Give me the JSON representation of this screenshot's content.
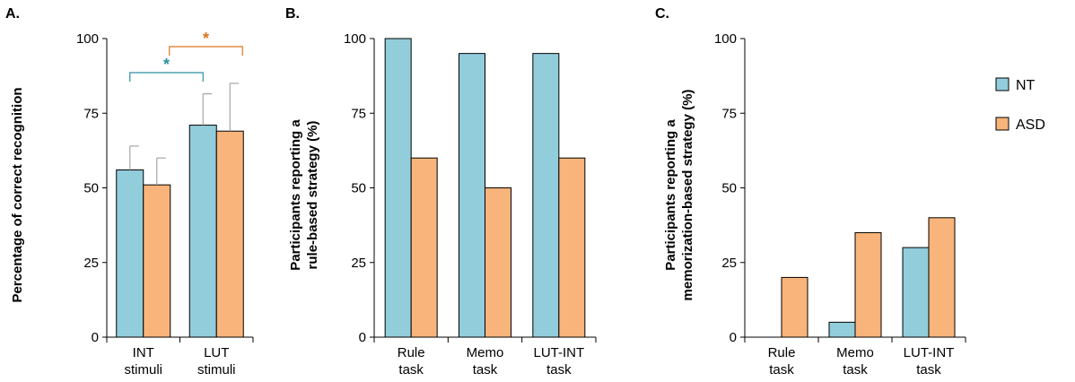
{
  "chart_data": [
    {
      "type": "bar",
      "panel": "A.",
      "title": "",
      "ylabel": "Percentage of correct recognition",
      "xlabel": "",
      "ylim": [
        0,
        100
      ],
      "yticks": [
        "0",
        "25",
        "50",
        "75",
        "100"
      ],
      "categories": [
        [
          "INT",
          "stimuli"
        ],
        [
          "LUT",
          "stimuli"
        ]
      ],
      "series": [
        {
          "name": "NT",
          "values": [
            56,
            71
          ],
          "error": [
            8,
            10.5
          ]
        },
        {
          "name": "ASD",
          "values": [
            51,
            69
          ],
          "error": [
            9,
            16
          ]
        }
      ],
      "annotations": [
        {
          "text": "*",
          "color": "#2b8fa0",
          "between": [
            "NT:INT stimuli",
            "NT:LUT stimuli"
          ]
        },
        {
          "text": "*",
          "color": "#d9771f",
          "between": [
            "ASD:INT stimuli",
            "ASD:LUT stimuli"
          ]
        }
      ]
    },
    {
      "type": "bar",
      "panel": "B.",
      "title": "",
      "ylabel": [
        "Participants reporting a",
        "rule-based strategy (%)"
      ],
      "xlabel": "",
      "ylim": [
        0,
        100
      ],
      "yticks": [
        "0",
        "25",
        "50",
        "75",
        "100"
      ],
      "categories": [
        [
          "Rule",
          "task"
        ],
        [
          "Memo",
          "task"
        ],
        [
          "LUT-INT",
          "task"
        ]
      ],
      "series": [
        {
          "name": "NT",
          "values": [
            100,
            95,
            95
          ]
        },
        {
          "name": "ASD",
          "values": [
            60,
            50,
            60
          ]
        }
      ]
    },
    {
      "type": "bar",
      "panel": "C.",
      "title": "",
      "ylabel": [
        "Participants reporting a",
        "memorization-based strategy (%)"
      ],
      "xlabel": "",
      "ylim": [
        0,
        100
      ],
      "yticks": [
        "0",
        "25",
        "50",
        "75",
        "100"
      ],
      "categories": [
        [
          "Rule",
          "task"
        ],
        [
          "Memo",
          "task"
        ],
        [
          "LUT-INT",
          "task"
        ]
      ],
      "series": [
        {
          "name": "NT",
          "values": [
            0,
            5,
            30
          ]
        },
        {
          "name": "ASD",
          "values": [
            20,
            35,
            40
          ]
        }
      ]
    }
  ],
  "legend": {
    "placement": "right",
    "items": [
      {
        "label": "NT",
        "color": "#92cddc"
      },
      {
        "label": "ASD",
        "color": "#f8b47a"
      }
    ]
  },
  "colors": {
    "NT": "#92cddc",
    "ASD": "#f8b47a",
    "error_bar": "#a6a6a6",
    "axis": "#000000"
  }
}
